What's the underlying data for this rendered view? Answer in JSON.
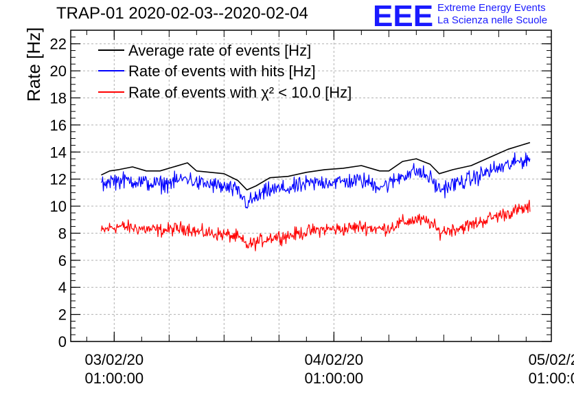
{
  "chart_data": {
    "type": "line",
    "title": "TRAP-01 2020-02-03--2020-02-04",
    "ylabel": "Rate [Hz]",
    "xlabel": "",
    "ylim": [
      0,
      23
    ],
    "y_ticks": [
      "0",
      "2",
      "4",
      "6",
      "8",
      "10",
      "12",
      "14",
      "16",
      "18",
      "20",
      "22"
    ],
    "x_range": [
      "2020-02-02 20:15:00",
      "2020-02-05 00:45:00"
    ],
    "x_ticks": [
      {
        "date": "03/02/20",
        "time": "01:00:00",
        "x": "2020-02-03 01:00:00"
      },
      {
        "date": "04/02/20",
        "time": "01:00:00",
        "x": "2020-02-04 01:00:00"
      },
      {
        "date": "05/02/2",
        "time": "01:00:0",
        "x": "2020-02-05 01:00:00"
      }
    ],
    "grid": true,
    "legend_position": "top-left",
    "series": [
      {
        "name": "Average rate of events [Hz]",
        "color": "#000000",
        "noise": 0,
        "points": [
          [
            "2020-02-02 23:35",
            12.3
          ],
          [
            "2020-02-03 00:30",
            12.6
          ],
          [
            "2020-02-03 01:30",
            12.7
          ],
          [
            "2020-02-03 03:00",
            12.9
          ],
          [
            "2020-02-03 04:30",
            12.6
          ],
          [
            "2020-02-03 06:00",
            12.6
          ],
          [
            "2020-02-03 07:30",
            12.9
          ],
          [
            "2020-02-03 09:00",
            13.2
          ],
          [
            "2020-02-03 10:00",
            12.6
          ],
          [
            "2020-02-03 11:30",
            12.5
          ],
          [
            "2020-02-03 13:00",
            12.4
          ],
          [
            "2020-02-03 14:30",
            11.9
          ],
          [
            "2020-02-03 15:30",
            11.2
          ],
          [
            "2020-02-03 16:30",
            11.5
          ],
          [
            "2020-02-03 18:00",
            12.1
          ],
          [
            "2020-02-03 20:00",
            12.2
          ],
          [
            "2020-02-03 22:00",
            12.5
          ],
          [
            "2020-02-04 00:00",
            12.7
          ],
          [
            "2020-02-04 02:00",
            12.8
          ],
          [
            "2020-02-04 04:00",
            13.0
          ],
          [
            "2020-02-04 06:00",
            12.6
          ],
          [
            "2020-02-04 07:00",
            12.6
          ],
          [
            "2020-02-04 08:30",
            13.3
          ],
          [
            "2020-02-04 10:00",
            13.5
          ],
          [
            "2020-02-04 11:30",
            13.1
          ],
          [
            "2020-02-04 12:30",
            12.4
          ],
          [
            "2020-02-04 14:00",
            12.7
          ],
          [
            "2020-02-04 16:00",
            13.0
          ],
          [
            "2020-02-04 18:00",
            13.6
          ],
          [
            "2020-02-04 20:00",
            14.2
          ],
          [
            "2020-02-04 22:25",
            14.7
          ]
        ]
      },
      {
        "name": "Rate of events with hits [Hz]",
        "color": "#0000ff",
        "noise": 0.55,
        "points": [
          [
            "2020-02-02 23:35",
            11.6
          ],
          [
            "2020-02-03 00:30",
            11.9
          ],
          [
            "2020-02-03 01:30",
            11.9
          ],
          [
            "2020-02-03 03:00",
            11.9
          ],
          [
            "2020-02-03 04:30",
            11.7
          ],
          [
            "2020-02-03 06:00",
            11.6
          ],
          [
            "2020-02-03 07:30",
            11.8
          ],
          [
            "2020-02-03 09:00",
            12.1
          ],
          [
            "2020-02-03 10:00",
            11.7
          ],
          [
            "2020-02-03 11:30",
            11.6
          ],
          [
            "2020-02-03 13:00",
            11.4
          ],
          [
            "2020-02-03 14:30",
            11.1
          ],
          [
            "2020-02-03 15:30",
            10.2
          ],
          [
            "2020-02-03 16:30",
            10.6
          ],
          [
            "2020-02-03 18:00",
            11.2
          ],
          [
            "2020-02-03 20:00",
            11.3
          ],
          [
            "2020-02-03 22:00",
            11.6
          ],
          [
            "2020-02-04 00:00",
            11.8
          ],
          [
            "2020-02-04 02:00",
            11.8
          ],
          [
            "2020-02-04 04:00",
            11.9
          ],
          [
            "2020-02-04 06:00",
            11.5
          ],
          [
            "2020-02-04 07:00",
            11.6
          ],
          [
            "2020-02-04 08:30",
            12.3
          ],
          [
            "2020-02-04 10:00",
            12.6
          ],
          [
            "2020-02-04 11:30",
            12.1
          ],
          [
            "2020-02-04 12:30",
            11.2
          ],
          [
            "2020-02-04 14:00",
            11.6
          ],
          [
            "2020-02-04 16:00",
            12.0
          ],
          [
            "2020-02-04 18:00",
            12.6
          ],
          [
            "2020-02-04 20:00",
            13.0
          ],
          [
            "2020-02-04 22:25",
            13.6
          ]
        ]
      },
      {
        "name": "Rate of events with χ² < 10.0 [Hz]",
        "color": "#ff0000",
        "noise": 0.45,
        "points": [
          [
            "2020-02-02 23:35",
            8.1
          ],
          [
            "2020-02-03 00:30",
            8.4
          ],
          [
            "2020-02-03 01:30",
            8.5
          ],
          [
            "2020-02-03 03:00",
            8.4
          ],
          [
            "2020-02-03 04:30",
            8.3
          ],
          [
            "2020-02-03 06:00",
            8.2
          ],
          [
            "2020-02-03 07:30",
            8.3
          ],
          [
            "2020-02-03 09:00",
            8.4
          ],
          [
            "2020-02-03 10:00",
            8.1
          ],
          [
            "2020-02-03 11:30",
            8.0
          ],
          [
            "2020-02-03 13:00",
            7.9
          ],
          [
            "2020-02-03 14:30",
            7.7
          ],
          [
            "2020-02-03 15:30",
            7.1
          ],
          [
            "2020-02-03 16:30",
            7.3
          ],
          [
            "2020-02-03 18:00",
            7.7
          ],
          [
            "2020-02-03 20:00",
            7.8
          ],
          [
            "2020-02-03 22:00",
            8.1
          ],
          [
            "2020-02-04 00:00",
            8.3
          ],
          [
            "2020-02-04 02:00",
            8.3
          ],
          [
            "2020-02-04 04:00",
            8.5
          ],
          [
            "2020-02-04 06:00",
            8.3
          ],
          [
            "2020-02-04 07:00",
            8.4
          ],
          [
            "2020-02-04 08:30",
            8.8
          ],
          [
            "2020-02-04 10:00",
            9.0
          ],
          [
            "2020-02-04 11:30",
            8.8
          ],
          [
            "2020-02-04 12:30",
            8.1
          ],
          [
            "2020-02-04 14:00",
            8.3
          ],
          [
            "2020-02-04 16:00",
            8.6
          ],
          [
            "2020-02-04 18:00",
            9.1
          ],
          [
            "2020-02-04 20:00",
            9.5
          ],
          [
            "2020-02-04 22:25",
            9.9
          ]
        ]
      }
    ]
  },
  "logo": {
    "mark": "EEE",
    "line1": "Extreme Energy Events",
    "line2": "La Scienza nelle Scuole"
  }
}
